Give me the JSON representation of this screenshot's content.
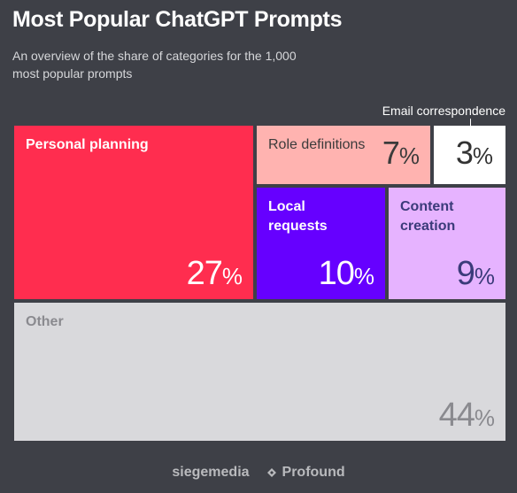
{
  "title": "Most Popular ChatGPT Prompts",
  "subtitle": "An overview of the share of categories for the 1,000 most popular prompts",
  "chart_data": {
    "type": "treemap",
    "unit": "%",
    "items": [
      {
        "name": "Personal planning",
        "value": 27,
        "color": "#ff2d4f",
        "text_color": "#ffffff"
      },
      {
        "name": "Role definitions",
        "value": 7,
        "color": "#ffb3b0",
        "text_color": "#3b3b3b"
      },
      {
        "name": "Email correspondence",
        "value": 3,
        "color": "#ffffff",
        "text_color": "#333333"
      },
      {
        "name": "Local requests",
        "value": 10,
        "color": "#6600ff",
        "text_color": "#ffffff"
      },
      {
        "name": "Content creation",
        "value": 9,
        "color": "#e6b3ff",
        "text_color": "#3b3b7a"
      },
      {
        "name": "Other",
        "value": 44,
        "color": "#d9d9dc",
        "text_color": "#8a8a8f"
      }
    ]
  },
  "footer": {
    "brand_left": "siegemedia",
    "brand_right": "Profound",
    "icon": "profound-logo-icon"
  }
}
